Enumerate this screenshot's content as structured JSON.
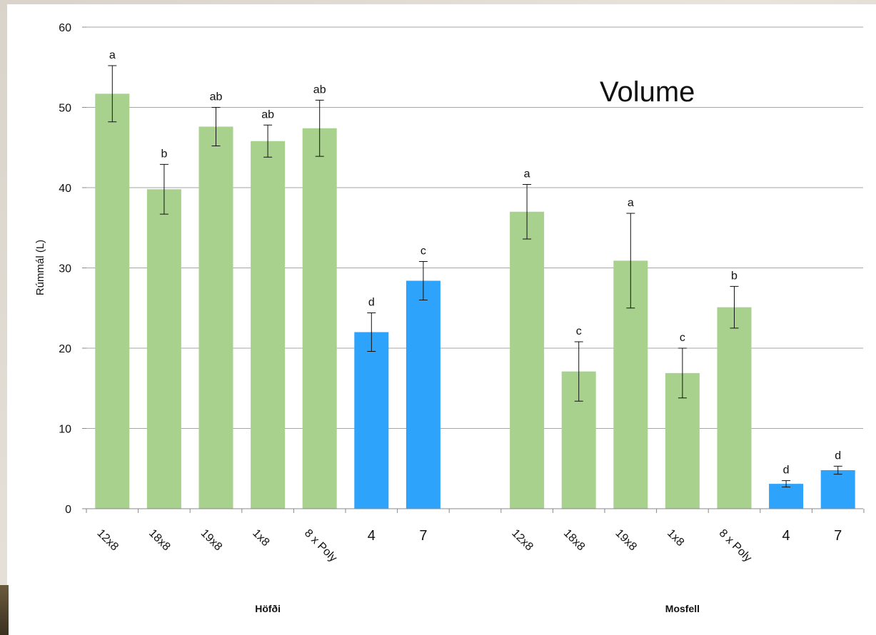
{
  "chart_data": {
    "type": "bar",
    "title": "Volume",
    "ylabel": "Rúmmál (L)",
    "ylim": [
      0,
      60
    ],
    "yticks": [
      0,
      10,
      20,
      30,
      40,
      50,
      60
    ],
    "grid": true,
    "groups": [
      {
        "name": "Höfði",
        "categories": [
          "12x8",
          "18x8",
          "19x8",
          "1x8",
          "8 x Poly",
          "4",
          "7"
        ],
        "values": [
          51.7,
          39.8,
          47.6,
          45.8,
          47.4,
          22.0,
          28.4
        ],
        "errors": [
          3.5,
          3.1,
          2.4,
          2.0,
          3.5,
          2.4,
          2.4
        ],
        "letters": [
          "a",
          "b",
          "ab",
          "ab",
          "ab",
          "d",
          "c"
        ],
        "colors": [
          "#a9d18e",
          "#a9d18e",
          "#a9d18e",
          "#a9d18e",
          "#a9d18e",
          "#2ea3fc",
          "#2ea3fc"
        ]
      },
      {
        "name": "Mosfell",
        "categories": [
          "12x8",
          "18x8",
          "19x8",
          "1x8",
          "8 x Poly",
          "4",
          "7"
        ],
        "values": [
          37.0,
          17.1,
          30.9,
          16.9,
          25.1,
          3.1,
          4.8
        ],
        "errors": [
          3.4,
          3.7,
          5.9,
          3.1,
          2.6,
          0.4,
          0.5
        ],
        "letters": [
          "a",
          "c",
          "a",
          "c",
          "b",
          "d",
          "d"
        ],
        "colors": [
          "#a9d18e",
          "#a9d18e",
          "#a9d18e",
          "#a9d18e",
          "#a9d18e",
          "#2ea3fc",
          "#2ea3fc"
        ]
      }
    ]
  }
}
